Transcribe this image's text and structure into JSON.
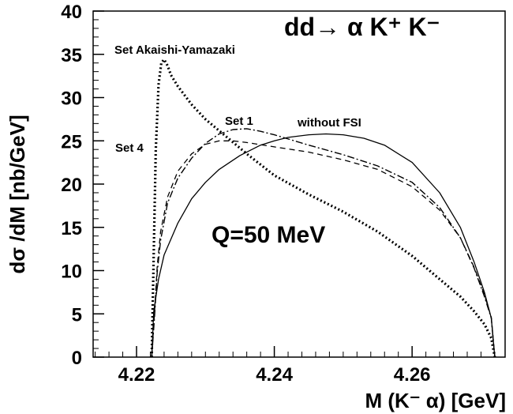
{
  "chart_data": {
    "type": "line",
    "title": "dd→ α K⁺ K⁻",
    "xlabel": "M (K⁻ α) [GeV]",
    "ylabel": "dσ /dM [nb/GeV]",
    "xlim": [
      4.2137,
      4.2735
    ],
    "ylim": [
      0,
      40
    ],
    "x_ticks": [
      "4.22",
      "4.24",
      "4.26"
    ],
    "x_tick_values": [
      4.22,
      4.24,
      4.26
    ],
    "y_ticks": [
      "0",
      "5",
      "10",
      "15",
      "20",
      "25",
      "30",
      "35",
      "40"
    ],
    "y_tick_values": [
      0,
      5,
      10,
      15,
      20,
      25,
      30,
      35,
      40
    ],
    "grid": false,
    "annotation": "Q=50 MeV",
    "series": [
      {
        "name": "without FSI",
        "line_style": "solid",
        "x": [
          4.2222,
          4.2225,
          4.2232,
          4.224,
          4.226,
          4.228,
          4.23,
          4.232,
          4.235,
          4.238,
          4.24,
          4.242,
          4.245,
          4.2475,
          4.25,
          4.253,
          4.256,
          4.26,
          4.264,
          4.267,
          4.269,
          4.2705,
          4.2715,
          4.272
        ],
        "y": [
          0,
          5.3,
          9.0,
          11.8,
          15.5,
          18.3,
          20.2,
          21.7,
          23.3,
          24.5,
          25.0,
          25.4,
          25.7,
          25.8,
          25.7,
          25.3,
          24.5,
          22.5,
          19.0,
          15.0,
          11.0,
          7.5,
          4.5,
          0
        ]
      },
      {
        "name": "Set 1",
        "line_style": "dash-dot",
        "x": [
          4.2222,
          4.2226,
          4.223,
          4.2235,
          4.2245,
          4.226,
          4.228,
          4.23,
          4.232,
          4.234,
          4.236,
          4.238,
          4.24,
          4.245,
          4.25,
          4.255,
          4.26,
          4.264,
          4.267,
          4.269,
          4.2705,
          4.2715,
          4.272
        ],
        "y": [
          0,
          4.5,
          9.8,
          13.5,
          17.8,
          20.7,
          23.0,
          24.7,
          25.8,
          26.3,
          26.4,
          26.1,
          25.7,
          24.5,
          23.4,
          22.1,
          20.2,
          17.3,
          13.8,
          10.3,
          7.0,
          4.5,
          0
        ]
      },
      {
        "name": "Set 4",
        "line_style": "dashed",
        "x": [
          4.2222,
          4.2226,
          4.223,
          4.2235,
          4.2245,
          4.226,
          4.228,
          4.23,
          4.232,
          4.234,
          4.236,
          4.24,
          4.245,
          4.25,
          4.255,
          4.26,
          4.264,
          4.267,
          4.269,
          4.2705,
          4.2715,
          4.272
        ],
        "y": [
          0,
          5.0,
          10.5,
          14.5,
          18.5,
          21.5,
          23.5,
          24.6,
          25.0,
          25.0,
          24.8,
          24.3,
          23.7,
          22.8,
          21.7,
          19.7,
          17.0,
          13.8,
          10.4,
          7.2,
          4.6,
          0
        ]
      },
      {
        "name": "Set Akaishi-Yamazaki",
        "line_style": "dotted",
        "x": [
          4.2222,
          4.2225,
          4.2228,
          4.2232,
          4.2236,
          4.224,
          4.2245,
          4.225,
          4.226,
          4.228,
          4.23,
          4.233,
          4.236,
          4.24,
          4.245,
          4.25,
          4.255,
          4.26,
          4.264,
          4.267,
          4.269,
          4.2705,
          4.2715,
          4.272
        ],
        "y": [
          0,
          12.0,
          24.0,
          31.5,
          34.0,
          34.4,
          33.7,
          32.6,
          31.3,
          29.2,
          27.5,
          25.5,
          23.5,
          21.0,
          18.8,
          16.8,
          14.5,
          11.7,
          9.0,
          7.0,
          5.3,
          3.8,
          2.2,
          0
        ]
      }
    ]
  }
}
